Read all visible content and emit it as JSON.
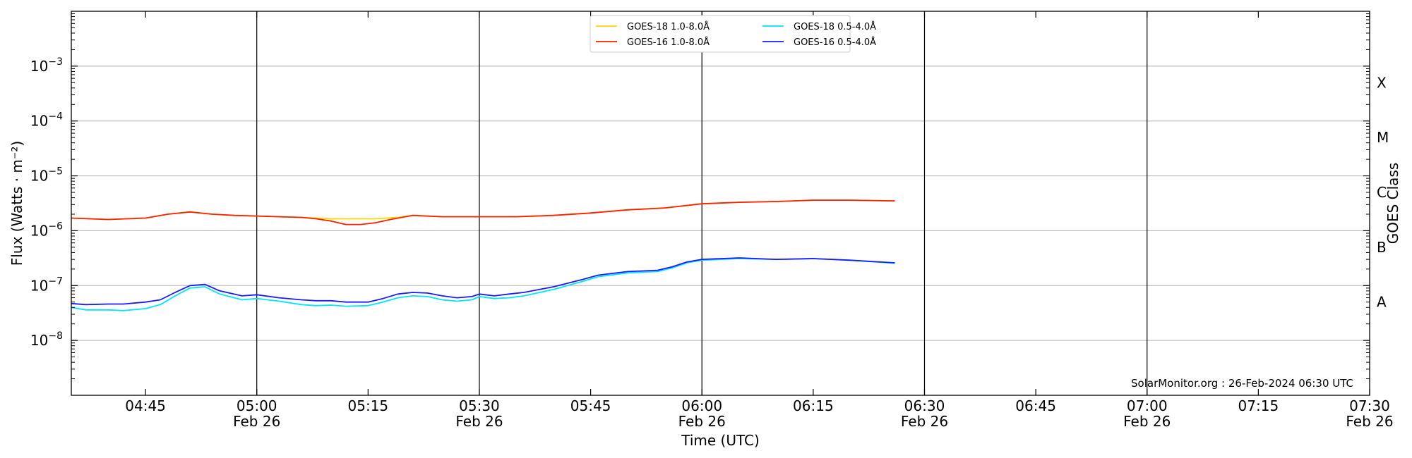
{
  "chart_data": {
    "type": "line",
    "title": "",
    "xlabel": "Time (UTC)",
    "ylabel": "Flux (Watts · m⁻²)",
    "y2label": "GOES Class",
    "yscale": "log",
    "ylim": [
      1e-09,
      0.01
    ],
    "xlim": [
      "04:35",
      "07:30"
    ],
    "grid": "horizontal at decades; vertical lines every 30 min",
    "legend_position": "top-center",
    "credit": "SolarMonitor.org : 26-Feb-2024 06:30 UTC",
    "x_ticks": [
      {
        "time": "04:45",
        "label": "04:45",
        "sublabel": ""
      },
      {
        "time": "05:00",
        "label": "05:00",
        "sublabel": "Feb 26"
      },
      {
        "time": "05:15",
        "label": "05:15",
        "sublabel": ""
      },
      {
        "time": "05:30",
        "label": "05:30",
        "sublabel": "Feb 26"
      },
      {
        "time": "05:45",
        "label": "05:45",
        "sublabel": ""
      },
      {
        "time": "06:00",
        "label": "06:00",
        "sublabel": "Feb 26"
      },
      {
        "time": "06:15",
        "label": "06:15",
        "sublabel": ""
      },
      {
        "time": "06:30",
        "label": "06:30",
        "sublabel": "Feb 26"
      },
      {
        "time": "06:45",
        "label": "06:45",
        "sublabel": ""
      },
      {
        "time": "07:00",
        "label": "07:00",
        "sublabel": "Feb 26"
      },
      {
        "time": "07:15",
        "label": "07:15",
        "sublabel": ""
      },
      {
        "time": "07:30",
        "label": "07:30",
        "sublabel": "Feb 26"
      }
    ],
    "y_ticks": [
      {
        "exp": -3,
        "base": "10",
        "sup": "−3"
      },
      {
        "exp": -4,
        "base": "10",
        "sup": "−4"
      },
      {
        "exp": -5,
        "base": "10",
        "sup": "−5"
      },
      {
        "exp": -6,
        "base": "10",
        "sup": "−6"
      },
      {
        "exp": -7,
        "base": "10",
        "sup": "−7"
      },
      {
        "exp": -8,
        "base": "10",
        "sup": "−8"
      }
    ],
    "goes_classes": [
      {
        "label": "X",
        "flux": 0.0005
      },
      {
        "label": "M",
        "flux": 5e-05
      },
      {
        "label": "C",
        "flux": 5e-06
      },
      {
        "label": "B",
        "flux": 5e-07
      },
      {
        "label": "A",
        "flux": 5e-08
      }
    ],
    "series": [
      {
        "name": "GOES-18 1.0-8.0Å",
        "color": "#ffd700",
        "x": [
          "04:35",
          "04:40",
          "04:45",
          "04:48",
          "04:51",
          "04:54",
          "04:57",
          "05:00",
          "05:03",
          "05:06",
          "05:08",
          "05:10",
          "05:13",
          "05:16",
          "05:19",
          "05:21",
          "05:25",
          "05:30",
          "05:35",
          "05:40",
          "05:45",
          "05:50",
          "05:55",
          "06:00",
          "06:05",
          "06:10",
          "06:15",
          "06:20",
          "06:26"
        ],
        "values": [
          1.7e-06,
          1.6e-06,
          1.7e-06,
          2e-06,
          2.2e-06,
          2e-06,
          1.9e-06,
          1.85e-06,
          1.8e-06,
          1.75e-06,
          1.7e-06,
          1.65e-06,
          1.65e-06,
          1.65e-06,
          1.75e-06,
          1.9e-06,
          1.8e-06,
          1.8e-06,
          1.8e-06,
          1.9e-06,
          2.1e-06,
          2.4e-06,
          2.6e-06,
          3.1e-06,
          3.3e-06,
          3.4e-06,
          3.6e-06,
          3.6e-06,
          3.5e-06
        ]
      },
      {
        "name": "GOES-16 1.0-8.0Å",
        "color": "#ff2000",
        "x": [
          "04:35",
          "04:40",
          "04:45",
          "04:48",
          "04:51",
          "04:54",
          "04:57",
          "05:00",
          "05:03",
          "05:06",
          "05:08",
          "05:10",
          "05:12",
          "05:14",
          "05:16",
          "05:18",
          "05:21",
          "05:25",
          "05:30",
          "05:35",
          "05:40",
          "05:45",
          "05:50",
          "05:55",
          "06:00",
          "06:05",
          "06:10",
          "06:15",
          "06:20",
          "06:26"
        ],
        "values": [
          1.7e-06,
          1.6e-06,
          1.7e-06,
          2e-06,
          2.2e-06,
          2e-06,
          1.9e-06,
          1.85e-06,
          1.8e-06,
          1.75e-06,
          1.65e-06,
          1.5e-06,
          1.3e-06,
          1.3e-06,
          1.4e-06,
          1.6e-06,
          1.9e-06,
          1.8e-06,
          1.8e-06,
          1.8e-06,
          1.9e-06,
          2.1e-06,
          2.4e-06,
          2.6e-06,
          3.1e-06,
          3.3e-06,
          3.4e-06,
          3.6e-06,
          3.6e-06,
          3.5e-06
        ]
      },
      {
        "name": "GOES-18 0.5-4.0Å",
        "color": "#00e5ff",
        "x": [
          "04:35",
          "04:37",
          "04:40",
          "04:42",
          "04:45",
          "04:47",
          "04:49",
          "04:51",
          "04:53",
          "04:55",
          "04:58",
          "05:00",
          "05:03",
          "05:06",
          "05:08",
          "05:10",
          "05:12",
          "05:15",
          "05:17",
          "05:19",
          "05:21",
          "05:23",
          "05:25",
          "05:27",
          "05:29",
          "05:30",
          "05:32",
          "05:34",
          "05:36",
          "05:40",
          "05:44",
          "05:46",
          "05:50",
          "05:54",
          "05:56",
          "05:58",
          "06:00",
          "06:05",
          "06:10",
          "06:15",
          "06:20",
          "06:26"
        ],
        "values": [
          4e-08,
          3.6e-08,
          3.6e-08,
          3.5e-08,
          3.8e-08,
          4.5e-08,
          6.5e-08,
          9e-08,
          9.5e-08,
          7e-08,
          5.5e-08,
          5.8e-08,
          5.2e-08,
          4.5e-08,
          4.3e-08,
          4.4e-08,
          4.2e-08,
          4.3e-08,
          5e-08,
          6e-08,
          6.5e-08,
          6.3e-08,
          5.5e-08,
          5.2e-08,
          5.5e-08,
          6.3e-08,
          5.8e-08,
          6e-08,
          6.5e-08,
          8.5e-08,
          1.2e-07,
          1.45e-07,
          1.7e-07,
          1.8e-07,
          2.1e-07,
          2.6e-07,
          2.9e-07,
          3.1e-07,
          3e-07,
          3.1e-07,
          2.9e-07,
          2.55e-07
        ]
      },
      {
        "name": "GOES-16 0.5-4.0Å",
        "color": "#1a1aff",
        "x": [
          "04:35",
          "04:37",
          "04:40",
          "04:42",
          "04:45",
          "04:47",
          "04:49",
          "04:51",
          "04:53",
          "04:55",
          "04:58",
          "05:00",
          "05:03",
          "05:06",
          "05:08",
          "05:10",
          "05:12",
          "05:15",
          "05:17",
          "05:19",
          "05:21",
          "05:23",
          "05:25",
          "05:27",
          "05:29",
          "05:30",
          "05:32",
          "05:34",
          "05:36",
          "05:40",
          "05:44",
          "05:46",
          "05:50",
          "05:54",
          "05:56",
          "05:58",
          "06:00",
          "06:05",
          "06:10",
          "06:15",
          "06:20",
          "06:26"
        ],
        "values": [
          4.7e-08,
          4.5e-08,
          4.6e-08,
          4.6e-08,
          5e-08,
          5.5e-08,
          7.5e-08,
          1e-07,
          1.05e-07,
          8e-08,
          6.5e-08,
          6.8e-08,
          6e-08,
          5.5e-08,
          5.3e-08,
          5.3e-08,
          5e-08,
          5e-08,
          5.8e-08,
          7e-08,
          7.5e-08,
          7.3e-08,
          6.5e-08,
          6e-08,
          6.3e-08,
          7e-08,
          6.5e-08,
          7e-08,
          7.5e-08,
          9.5e-08,
          1.3e-07,
          1.55e-07,
          1.8e-07,
          1.9e-07,
          2.2e-07,
          2.7e-07,
          3e-07,
          3.2e-07,
          3e-07,
          3.1e-07,
          2.9e-07,
          2.6e-07
        ]
      }
    ]
  }
}
